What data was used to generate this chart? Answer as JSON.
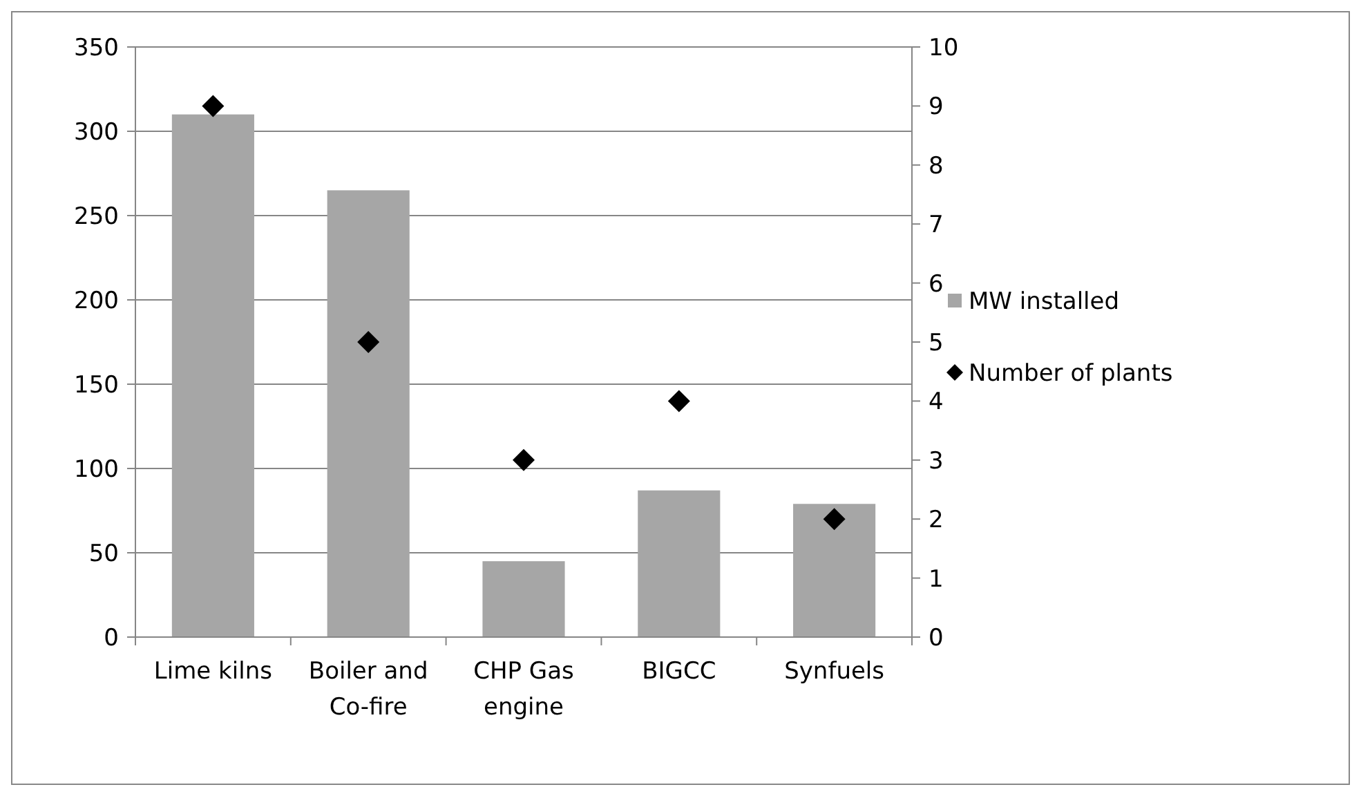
{
  "chart_data": {
    "type": "bar",
    "categories": [
      "Lime kilns",
      "Boiler and Co-fire",
      "CHP Gas engine",
      "BIGCC",
      "Synfuels"
    ],
    "series": [
      {
        "name": "MW installed",
        "color": "#a6a6a6",
        "values": [
          310,
          265,
          45,
          87,
          79
        ]
      },
      {
        "name": "Number of plants",
        "type": "scatter",
        "axis": "y2",
        "marker": "diamond",
        "color": "#000000",
        "values": [
          9,
          5,
          3,
          4,
          2
        ]
      }
    ],
    "ylim": [
      0,
      350
    ],
    "yticks": [
      0,
      50,
      100,
      150,
      200,
      250,
      300,
      350
    ],
    "y2lim": [
      0,
      10
    ],
    "y2ticks": [
      0,
      1,
      2,
      3,
      4,
      5,
      6,
      7,
      8,
      9,
      10
    ],
    "grid": "y",
    "legend": "right"
  }
}
